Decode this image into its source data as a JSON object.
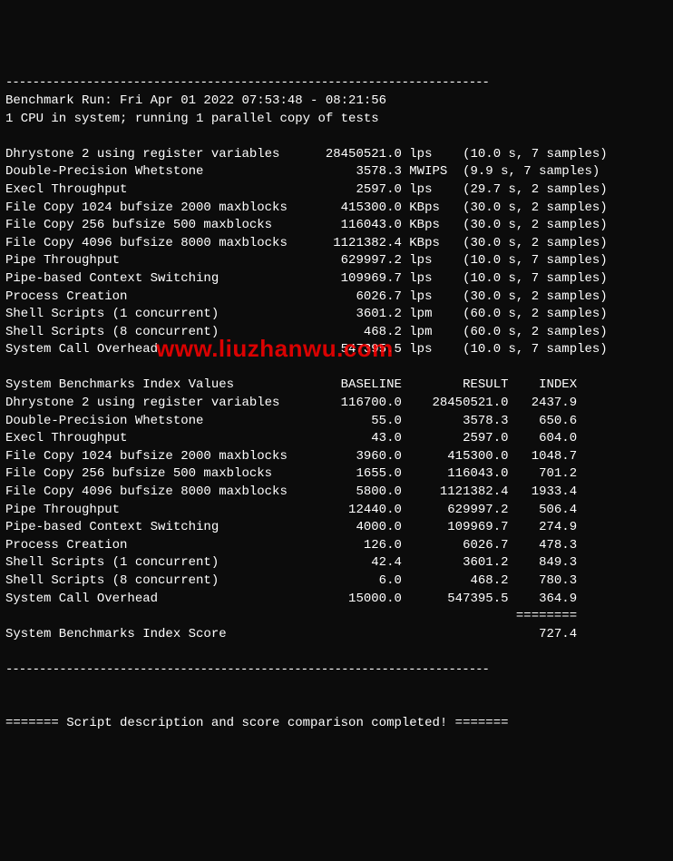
{
  "separator_top": "------------------------------------------------------------------------",
  "header": {
    "run_line": "Benchmark Run: Fri Apr 01 2022 07:53:48 - 08:21:56",
    "cpu_line": "1 CPU in system; running 1 parallel copy of tests"
  },
  "tests": [
    {
      "name": "Dhrystone 2 using register variables",
      "value": "28450521.0",
      "unit": "lps",
      "timing": "(10.0 s, 7 samples)"
    },
    {
      "name": "Double-Precision Whetstone",
      "value": "3578.3",
      "unit": "MWIPS",
      "timing": "(9.9 s, 7 samples)"
    },
    {
      "name": "Execl Throughput",
      "value": "2597.0",
      "unit": "lps",
      "timing": "(29.7 s, 2 samples)"
    },
    {
      "name": "File Copy 1024 bufsize 2000 maxblocks",
      "value": "415300.0",
      "unit": "KBps",
      "timing": "(30.0 s, 2 samples)"
    },
    {
      "name": "File Copy 256 bufsize 500 maxblocks",
      "value": "116043.0",
      "unit": "KBps",
      "timing": "(30.0 s, 2 samples)"
    },
    {
      "name": "File Copy 4096 bufsize 8000 maxblocks",
      "value": "1121382.4",
      "unit": "KBps",
      "timing": "(30.0 s, 2 samples)"
    },
    {
      "name": "Pipe Throughput",
      "value": "629997.2",
      "unit": "lps",
      "timing": "(10.0 s, 7 samples)"
    },
    {
      "name": "Pipe-based Context Switching",
      "value": "109969.7",
      "unit": "lps",
      "timing": "(10.0 s, 7 samples)"
    },
    {
      "name": "Process Creation",
      "value": "6026.7",
      "unit": "lps",
      "timing": "(30.0 s, 2 samples)"
    },
    {
      "name": "Shell Scripts (1 concurrent)",
      "value": "3601.2",
      "unit": "lpm",
      "timing": "(60.0 s, 2 samples)"
    },
    {
      "name": "Shell Scripts (8 concurrent)",
      "value": "468.2",
      "unit": "lpm",
      "timing": "(60.0 s, 2 samples)"
    },
    {
      "name": "System Call Overhead",
      "value": "547395.5",
      "unit": "lps",
      "timing": "(10.0 s, 7 samples)"
    }
  ],
  "index_header": {
    "title": "System Benchmarks Index Values",
    "col1": "BASELINE",
    "col2": "RESULT",
    "col3": "INDEX"
  },
  "index_rows": [
    {
      "name": "Dhrystone 2 using register variables",
      "baseline": "116700.0",
      "result": "28450521.0",
      "index": "2437.9"
    },
    {
      "name": "Double-Precision Whetstone",
      "baseline": "55.0",
      "result": "3578.3",
      "index": "650.6"
    },
    {
      "name": "Execl Throughput",
      "baseline": "43.0",
      "result": "2597.0",
      "index": "604.0"
    },
    {
      "name": "File Copy 1024 bufsize 2000 maxblocks",
      "baseline": "3960.0",
      "result": "415300.0",
      "index": "1048.7"
    },
    {
      "name": "File Copy 256 bufsize 500 maxblocks",
      "baseline": "1655.0",
      "result": "116043.0",
      "index": "701.2"
    },
    {
      "name": "File Copy 4096 bufsize 8000 maxblocks",
      "baseline": "5800.0",
      "result": "1121382.4",
      "index": "1933.4"
    },
    {
      "name": "Pipe Throughput",
      "baseline": "12440.0",
      "result": "629997.2",
      "index": "506.4"
    },
    {
      "name": "Pipe-based Context Switching",
      "baseline": "4000.0",
      "result": "109969.7",
      "index": "274.9"
    },
    {
      "name": "Process Creation",
      "baseline": "126.0",
      "result": "6026.7",
      "index": "478.3"
    },
    {
      "name": "Shell Scripts (1 concurrent)",
      "baseline": "42.4",
      "result": "3601.2",
      "index": "849.3"
    },
    {
      "name": "Shell Scripts (8 concurrent)",
      "baseline": "6.0",
      "result": "468.2",
      "index": "780.3"
    },
    {
      "name": "System Call Overhead",
      "baseline": "15000.0",
      "result": "547395.5",
      "index": "364.9"
    }
  ],
  "score_separator": "                                                                   ========",
  "score_line": {
    "label": "System Benchmarks Index Score",
    "value": "727.4"
  },
  "footer": {
    "separator": "------------------------------------------------------------------------",
    "completion": "======= Script description and score comparison completed! ======="
  },
  "watermark": "www.liuzhanwu.com"
}
